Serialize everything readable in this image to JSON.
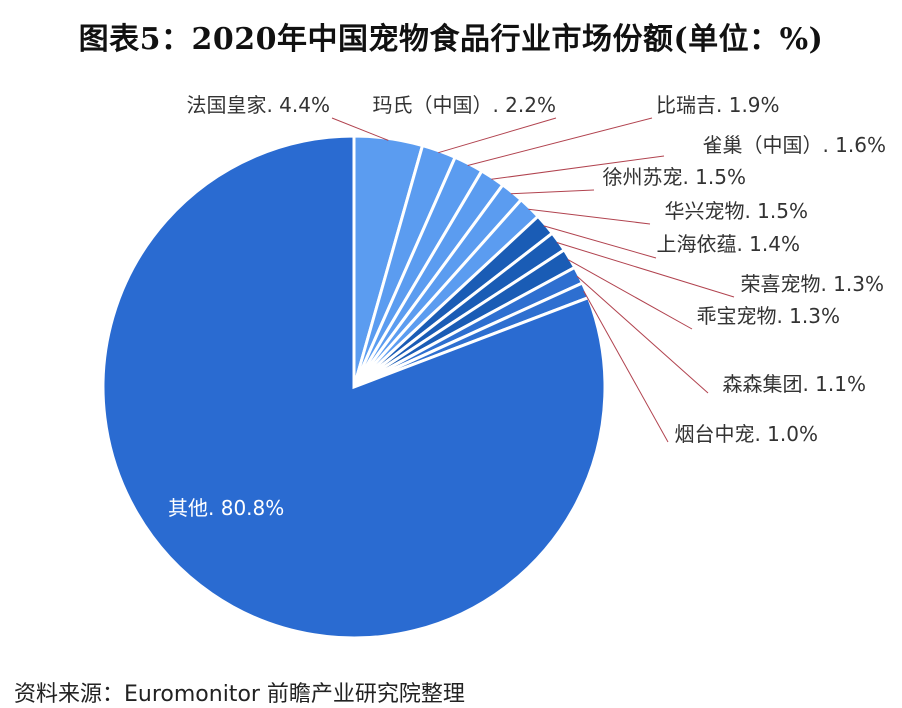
{
  "chart_data": {
    "type": "pie",
    "title": "图表5：2020年中国宠物食品行业市场份额(单位：%)",
    "source": "资料来源：Euromonitor 前瞻产业研究院整理",
    "slices": [
      {
        "name": "法国皇家",
        "value": 4.4,
        "label": "法国皇家. 4.4%",
        "color": "#5b9cf0"
      },
      {
        "name": "玛氏（中国）",
        "value": 2.2,
        "label": "玛氏（中国）. 2.2%",
        "color": "#5b9cf0"
      },
      {
        "name": "比瑞吉",
        "value": 1.9,
        "label": "比瑞吉. 1.9%",
        "color": "#5b9cf0"
      },
      {
        "name": "雀巢（中国）",
        "value": 1.6,
        "label": "雀巢（中国）. 1.6%",
        "color": "#5b9cf0"
      },
      {
        "name": "徐州苏宠",
        "value": 1.5,
        "label": "徐州苏宠. 1.5%",
        "color": "#5b9cf0"
      },
      {
        "name": "华兴宠物",
        "value": 1.5,
        "label": "华兴宠物. 1.5%",
        "color": "#5b9cf0"
      },
      {
        "name": "上海依蕴",
        "value": 1.4,
        "label": "上海依蕴. 1.4%",
        "color": "#1a5cb5"
      },
      {
        "name": "荣喜宠物",
        "value": 1.3,
        "label": "荣喜宠物. 1.3%",
        "color": "#1a5cb5"
      },
      {
        "name": "乖宝宠物",
        "value": 1.3,
        "label": "乖宝宠物. 1.3%",
        "color": "#1a5cb5"
      },
      {
        "name": "森森集团",
        "value": 1.1,
        "label": "森森集团. 1.1%",
        "color": "#2e6fd0"
      },
      {
        "name": "烟台中宠",
        "value": 1.0,
        "label": "烟台中宠. 1.0%",
        "color": "#2e6fd0"
      },
      {
        "name": "其他",
        "value": 80.8,
        "label": "其他. 80.8%",
        "color": "#2a6bd1"
      }
    ]
  }
}
